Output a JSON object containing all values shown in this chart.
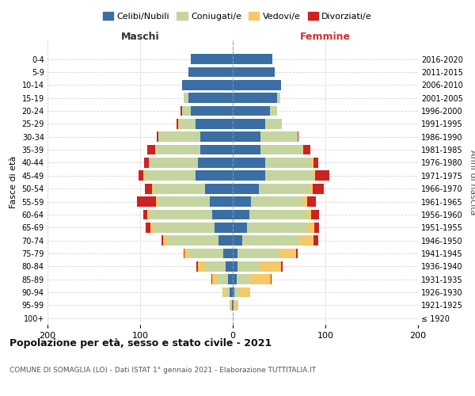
{
  "age_groups": [
    "100+",
    "95-99",
    "90-94",
    "85-89",
    "80-84",
    "75-79",
    "70-74",
    "65-69",
    "60-64",
    "55-59",
    "50-54",
    "45-49",
    "40-44",
    "35-39",
    "30-34",
    "25-29",
    "20-24",
    "15-19",
    "10-14",
    "5-9",
    "0-4"
  ],
  "birth_years": [
    "≤ 1920",
    "1921-1925",
    "1926-1930",
    "1931-1935",
    "1936-1940",
    "1941-1945",
    "1946-1950",
    "1951-1955",
    "1956-1960",
    "1961-1965",
    "1966-1970",
    "1971-1975",
    "1976-1980",
    "1981-1985",
    "1986-1990",
    "1991-1995",
    "1996-2000",
    "2001-2005",
    "2006-2010",
    "2011-2015",
    "2016-2020"
  ],
  "maschi": {
    "celibi": [
      0,
      1,
      3,
      5,
      8,
      10,
      15,
      20,
      22,
      25,
      30,
      40,
      38,
      35,
      35,
      40,
      45,
      48,
      55,
      48,
      45
    ],
    "coniugati": [
      0,
      1,
      5,
      12,
      22,
      38,
      55,
      65,
      68,
      55,
      55,
      55,
      52,
      48,
      45,
      18,
      10,
      5,
      0,
      0,
      0
    ],
    "vedovi": [
      0,
      1,
      3,
      5,
      8,
      4,
      5,
      4,
      2,
      3,
      2,
      2,
      1,
      1,
      0,
      1,
      0,
      0,
      0,
      0,
      0
    ],
    "divorziati": [
      0,
      0,
      0,
      1,
      1,
      1,
      2,
      5,
      5,
      20,
      8,
      5,
      5,
      8,
      2,
      2,
      1,
      0,
      0,
      0,
      0
    ]
  },
  "femmine": {
    "nubili": [
      0,
      1,
      2,
      4,
      5,
      5,
      10,
      15,
      18,
      20,
      28,
      35,
      35,
      30,
      30,
      35,
      40,
      48,
      52,
      45,
      43
    ],
    "coniugate": [
      0,
      2,
      5,
      15,
      25,
      45,
      62,
      65,
      62,
      55,
      55,
      52,
      50,
      45,
      40,
      18,
      8,
      3,
      0,
      0,
      0
    ],
    "vedove": [
      0,
      3,
      12,
      22,
      22,
      18,
      15,
      8,
      5,
      5,
      3,
      2,
      2,
      1,
      0,
      0,
      0,
      0,
      0,
      0,
      0
    ],
    "divorziate": [
      0,
      0,
      0,
      1,
      2,
      2,
      5,
      5,
      8,
      10,
      12,
      15,
      5,
      8,
      1,
      0,
      0,
      0,
      0,
      0,
      0
    ]
  },
  "colors": {
    "celibi": "#3a6ea5",
    "coniugati": "#c5d5a0",
    "vedovi": "#f5c96a",
    "divorziati": "#cc2222"
  },
  "title": "Popolazione per età, sesso e stato civile - 2021",
  "subtitle": "COMUNE DI SOMAGLIA (LO) - Dati ISTAT 1° gennaio 2021 - Elaborazione TUTTITALIA.IT",
  "ylabel_left": "Fasce di età",
  "ylabel_right": "Anni di nascita",
  "xlabel_maschi": "Maschi",
  "xlabel_femmine": "Femmine",
  "xlim": 200,
  "background_color": "#ffffff",
  "grid_color": "#cccccc"
}
